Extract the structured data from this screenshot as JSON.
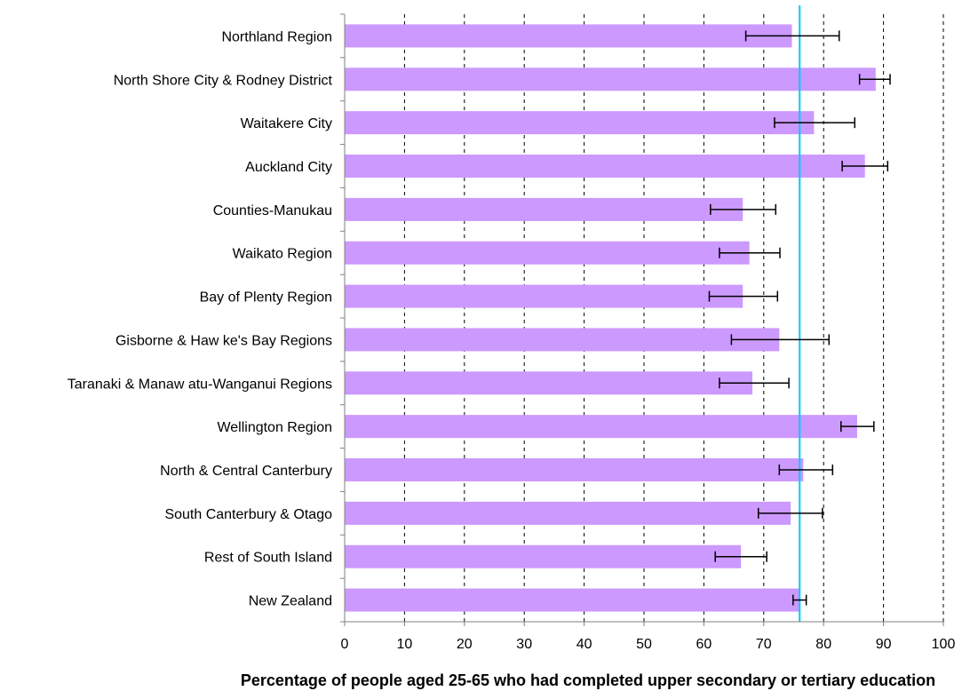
{
  "chart_data": {
    "type": "bar",
    "orientation": "horizontal",
    "categories": [
      "Northland Region",
      "North Shore City & Rodney District",
      "Waitakere City",
      "Auckland City",
      "Counties-Manukau",
      "Waikato Region",
      "Bay of Plenty Region",
      "Gisborne & Haw ke's Bay Regions",
      "Taranaki & Manaw atu-Wanganui Regions",
      "Wellington Region",
      "North & Central Canterbury",
      "South Canterbury & Otago",
      "Rest of South Island",
      "New Zealand"
    ],
    "values": [
      74.7,
      88.7,
      78.4,
      86.9,
      66.5,
      67.6,
      66.5,
      72.6,
      68.1,
      85.6,
      76.6,
      74.5,
      66.2,
      76.0
    ],
    "error_low": [
      67.0,
      86.0,
      71.8,
      83.1,
      61.1,
      62.6,
      60.9,
      64.6,
      62.6,
      82.9,
      72.6,
      69.1,
      61.9,
      74.9
    ],
    "error_high": [
      82.6,
      91.1,
      85.2,
      90.7,
      72.0,
      72.7,
      72.3,
      80.9,
      74.2,
      88.4,
      81.5,
      79.8,
      70.5,
      77.1
    ],
    "reference_line": 76.0,
    "xlim": [
      0,
      100
    ],
    "x_ticks": [
      "0",
      "10",
      "20",
      "30",
      "40",
      "50",
      "60",
      "70",
      "80",
      "90",
      "100"
    ],
    "xlabel": "Percentage of people aged 25-65 who had completed upper secondary or tertiary education",
    "ylabel": "",
    "title": "",
    "grid": "vertical-dashed",
    "colors": {
      "bar": "#cc99ff",
      "reference_line": "#00ccff",
      "grid": "#000000",
      "error_bar": "#000000"
    }
  }
}
